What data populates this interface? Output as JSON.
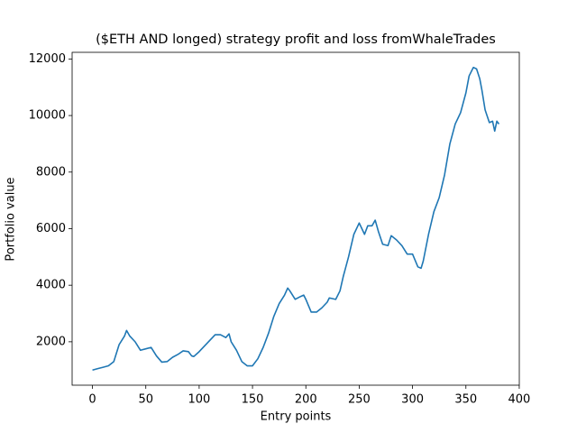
{
  "chart_data": {
    "type": "line",
    "title": "($ETH AND longed) strategy profit and loss fromWhaleTrades",
    "x_label": "Entry points",
    "y_label": "Portfolio value",
    "x": [
      0,
      5,
      10,
      15,
      20,
      25,
      30,
      32,
      35,
      40,
      45,
      50,
      55,
      60,
      65,
      70,
      75,
      80,
      85,
      90,
      93,
      95,
      100,
      105,
      110,
      115,
      120,
      125,
      128,
      130,
      135,
      140,
      145,
      150,
      155,
      160,
      165,
      170,
      175,
      180,
      183,
      185,
      190,
      195,
      198,
      200,
      205,
      210,
      215,
      220,
      222,
      228,
      232,
      235,
      240,
      245,
      250,
      255,
      258,
      262,
      265,
      268,
      272,
      277,
      280,
      285,
      290,
      295,
      300,
      305,
      308,
      310,
      315,
      320,
      325,
      330,
      335,
      340,
      345,
      350,
      353,
      357,
      360,
      363,
      365,
      368,
      372,
      375,
      377,
      379,
      381
    ],
    "series": [
      {
        "name": "Portfolio value",
        "color": "#1f77b4",
        "values": [
          1000,
          1050,
          1100,
          1150,
          1300,
          1900,
          2200,
          2400,
          2200,
          2000,
          1700,
          1750,
          1800,
          1500,
          1280,
          1300,
          1450,
          1550,
          1680,
          1650,
          1500,
          1480,
          1650,
          1850,
          2050,
          2250,
          2250,
          2150,
          2280,
          2000,
          1700,
          1300,
          1150,
          1150,
          1400,
          1800,
          2300,
          2900,
          3350,
          3650,
          3900,
          3800,
          3500,
          3600,
          3650,
          3500,
          3050,
          3050,
          3200,
          3400,
          3550,
          3500,
          3800,
          4300,
          5000,
          5800,
          6200,
          5800,
          6100,
          6100,
          6300,
          5900,
          5450,
          5400,
          5750,
          5600,
          5400,
          5100,
          5100,
          4650,
          4600,
          4850,
          5800,
          6600,
          7100,
          7900,
          9000,
          9700,
          10100,
          10800,
          11400,
          11700,
          11650,
          11300,
          10900,
          10200,
          9750,
          9800,
          9450,
          9800,
          9700
        ]
      }
    ],
    "xlim": [
      -19.05,
      400.05
    ],
    "ylim": [
      465,
      12235
    ],
    "xticks": [
      0,
      50,
      100,
      150,
      200,
      250,
      300,
      350,
      400
    ],
    "yticks": [
      2000,
      4000,
      6000,
      8000,
      10000,
      12000
    ],
    "grid": false
  }
}
